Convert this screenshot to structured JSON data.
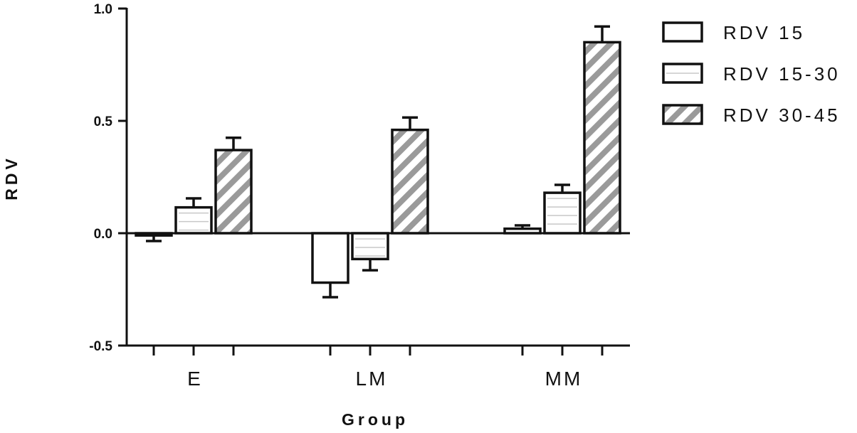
{
  "chart_data": {
    "type": "bar",
    "xlabel": "Group",
    "ylabel": "RDV",
    "ylim": [
      -0.5,
      1.0
    ],
    "yticks": [
      "-0.5",
      "0.0",
      "0.5",
      "1.0"
    ],
    "categories": [
      "E",
      "LM",
      "MM"
    ],
    "series": [
      {
        "name": "RDV 15",
        "values": [
          -0.01,
          -0.22,
          0.02
        ],
        "errors": [
          0.025,
          0.065,
          0.015
        ],
        "fill": "#ffffff",
        "pattern": "none"
      },
      {
        "name": "RDV 15-30",
        "values": [
          0.115,
          -0.115,
          0.18
        ],
        "errors": [
          0.04,
          0.05,
          0.035
        ],
        "fill": "#ffffff",
        "pattern": "horizontal-lines"
      },
      {
        "name": "RDV 30-45",
        "values": [
          0.37,
          0.46,
          0.85
        ],
        "errors": [
          0.055,
          0.055,
          0.07
        ],
        "fill": "#ffffff",
        "pattern": "diagonal-stripes"
      }
    ],
    "legend_position": "top-right",
    "grid": false,
    "colors": {
      "stroke": "#111111",
      "stripe": "#9a9a9a",
      "line": "#c8c8c8"
    }
  }
}
